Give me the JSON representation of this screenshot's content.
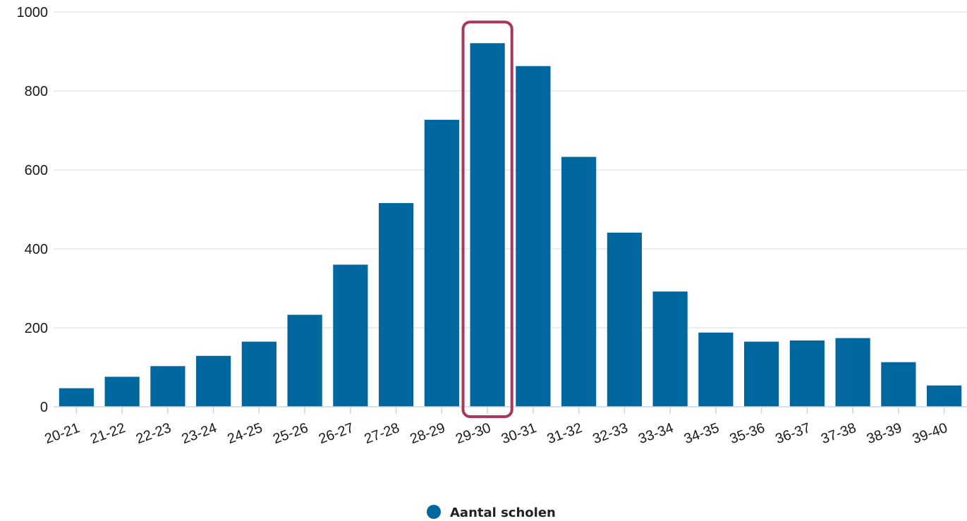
{
  "chart_data": {
    "type": "bar",
    "categories": [
      "20-21",
      "21-22",
      "22-23",
      "23-24",
      "24-25",
      "25-26",
      "26-27",
      "27-28",
      "28-29",
      "29-30",
      "30-31",
      "31-32",
      "32-33",
      "33-34",
      "34-35",
      "35-36",
      "36-37",
      "37-38",
      "38-39",
      "39-40"
    ],
    "series": [
      {
        "name": "Aantal scholen",
        "values": [
          47,
          76,
          103,
          129,
          165,
          233,
          360,
          516,
          727,
          921,
          863,
          633,
          441,
          292,
          188,
          165,
          168,
          174,
          113,
          54
        ]
      }
    ],
    "ylim": [
      0,
      1000
    ],
    "yticks": [
      "0",
      "200",
      "400",
      "600",
      "800",
      "1000"
    ],
    "grid": true,
    "legend": "bottom-center",
    "highlight_category": "29-30",
    "colors": {
      "bar": "#00689f",
      "highlight": "#a8385a",
      "grid": "#e6e6e6",
      "axis": "#c8d6e5"
    }
  }
}
